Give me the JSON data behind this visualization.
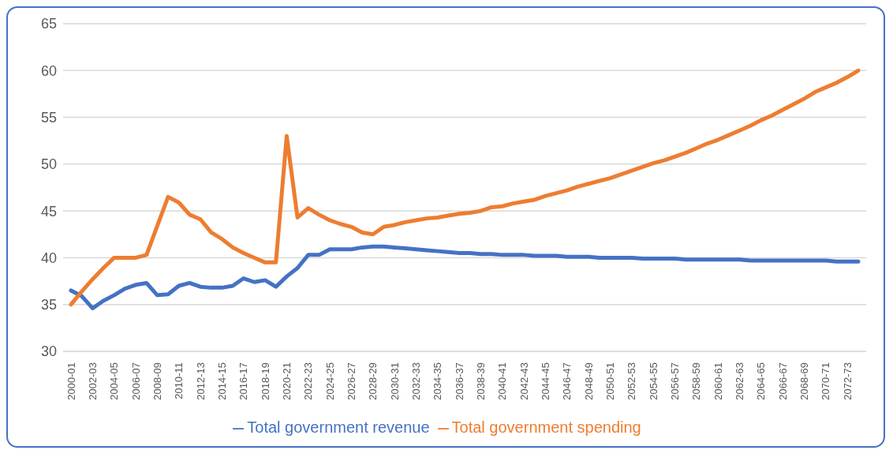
{
  "chart_data": {
    "type": "line",
    "categories": [
      "2000-01",
      null,
      "2002-03",
      null,
      "2004-05",
      null,
      "2006-07",
      null,
      "2008-09",
      null,
      "2010-11",
      null,
      "2012-13",
      null,
      "2014-15",
      null,
      "2016-17",
      null,
      "2018-19",
      null,
      "2020-21",
      null,
      "2022-23",
      null,
      "2024-25",
      null,
      "2026-27",
      null,
      "2028-29",
      null,
      "2030-31",
      null,
      "2032-33",
      null,
      "2034-35",
      null,
      "2036-37",
      null,
      "2038-39",
      null,
      "2040-41",
      null,
      "2042-43",
      null,
      "2044-45",
      null,
      "2046-47",
      null,
      "2048-49",
      null,
      "2050-51",
      null,
      "2052-53",
      null,
      "2054-55",
      null,
      "2056-57",
      null,
      "2058-59",
      null,
      "2060-61",
      null,
      "2062-63",
      null,
      "2064-65",
      null,
      "2066-67",
      null,
      "2068-69",
      null,
      "2070-71",
      null,
      "2072-73",
      null
    ],
    "series": [
      {
        "name": "Total government revenue",
        "color": "#4472c4",
        "values": [
          36.5,
          35.9,
          34.6,
          35.4,
          36.0,
          36.7,
          37.1,
          37.3,
          36.0,
          36.1,
          37.0,
          37.3,
          36.9,
          36.8,
          36.8,
          37.0,
          37.8,
          37.4,
          37.6,
          36.9,
          38.0,
          38.9,
          40.3,
          40.3,
          40.9,
          40.9,
          40.9,
          41.1,
          41.2,
          41.2,
          41.1,
          41.0,
          40.9,
          40.8,
          40.7,
          40.6,
          40.5,
          40.5,
          40.4,
          40.4,
          40.3,
          40.3,
          40.3,
          40.2,
          40.2,
          40.2,
          40.1,
          40.1,
          40.1,
          40.0,
          40.0,
          40.0,
          40.0,
          39.9,
          39.9,
          39.9,
          39.9,
          39.8,
          39.8,
          39.8,
          39.8,
          39.8,
          39.8,
          39.7,
          39.7,
          39.7,
          39.7,
          39.7,
          39.7,
          39.7,
          39.7,
          39.6,
          39.6,
          39.6
        ]
      },
      {
        "name": "Total government spending",
        "color": "#ed7d31",
        "values": [
          35.0,
          36.4,
          37.7,
          38.9,
          40.0,
          40.0,
          40.0,
          40.3,
          43.4,
          46.5,
          45.9,
          44.6,
          44.1,
          42.7,
          42.0,
          41.1,
          40.5,
          40.0,
          39.5,
          39.5,
          53.0,
          44.3,
          45.3,
          44.6,
          44.0,
          43.6,
          43.3,
          42.7,
          42.5,
          43.3,
          43.5,
          43.8,
          44.0,
          44.2,
          44.3,
          44.5,
          44.7,
          44.8,
          45.0,
          45.4,
          45.5,
          45.8,
          46.0,
          46.2,
          46.6,
          46.9,
          47.2,
          47.6,
          47.9,
          48.2,
          48.5,
          48.9,
          49.3,
          49.7,
          50.1,
          50.4,
          50.8,
          51.2,
          51.7,
          52.2,
          52.6,
          53.1,
          53.6,
          54.1,
          54.7,
          55.2,
          55.8,
          56.4,
          57.0,
          57.7,
          58.2,
          58.7,
          59.3,
          60.0
        ]
      }
    ],
    "ylim": [
      30,
      65
    ],
    "yticks": [
      30,
      35,
      40,
      45,
      50,
      55,
      60,
      65
    ],
    "grid": "y",
    "legend": "bottom",
    "marker": "none",
    "line_style": "solid"
  }
}
